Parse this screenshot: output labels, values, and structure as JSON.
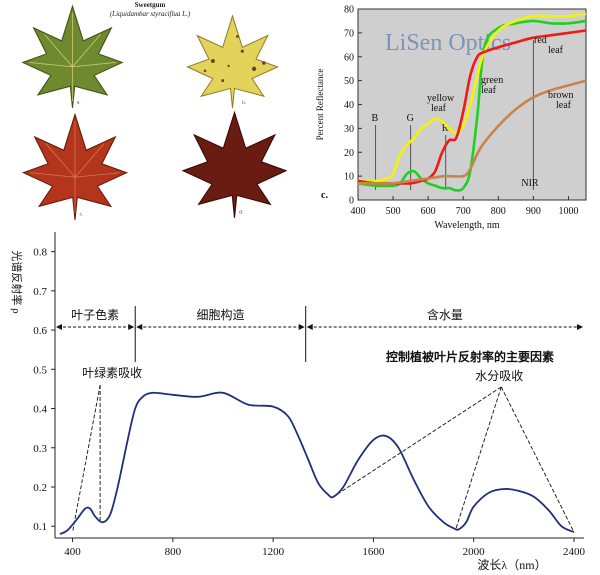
{
  "leaf_panel": {
    "title": "Sweetgum",
    "subtitle": "(Liquidambar styraciflua L.)",
    "labels": [
      "a.",
      "b.",
      "c.",
      "d."
    ],
    "colors": {
      "a": "#6f8a2e",
      "b": "#e3d35a",
      "c": "#b3361c",
      "d": "#6a1b12"
    }
  },
  "chart_data": [
    {
      "type": "line",
      "ylabel": "Percent Reflectance",
      "xlabel": "Wavelength, nm",
      "xlim": [
        400,
        1050
      ],
      "ylim": [
        0,
        80
      ],
      "xticks": [
        400,
        500,
        600,
        700,
        800,
        900,
        1000
      ],
      "yticks": [
        0,
        10,
        20,
        30,
        40,
        50,
        60,
        70,
        80
      ],
      "background": "#cfcfcf",
      "watermark": "LiSen Optics",
      "panel_label": "c.",
      "band_markers": [
        {
          "label": "B",
          "x": 450
        },
        {
          "label": "G",
          "x": 550
        },
        {
          "label": "R",
          "x": 650
        },
        {
          "label": "NIR",
          "x": 900
        }
      ],
      "series": [
        {
          "name": "green leaf",
          "color": "#1fd11f",
          "x": [
            400,
            450,
            500,
            520,
            540,
            560,
            580,
            600,
            620,
            640,
            660,
            680,
            700,
            720,
            740,
            760,
            800,
            850,
            900,
            950,
            1000,
            1050
          ],
          "y": [
            7,
            6,
            6,
            7,
            11,
            12,
            9,
            7,
            6,
            5,
            5,
            4,
            5,
            12,
            35,
            64,
            72,
            74,
            75,
            74,
            74,
            75
          ]
        },
        {
          "name": "yellow leaf",
          "color": "#f2f20a",
          "x": [
            400,
            450,
            480,
            500,
            520,
            540,
            560,
            580,
            600,
            620,
            640,
            660,
            680,
            700,
            720,
            740,
            760,
            800,
            850,
            900,
            950,
            1000,
            1050
          ],
          "y": [
            8,
            8,
            9,
            11,
            19,
            23,
            26,
            30,
            32,
            34,
            33,
            30,
            28,
            31,
            40,
            52,
            62,
            71,
            75,
            77,
            77,
            77,
            78
          ]
        },
        {
          "name": "red leaf",
          "color": "#ee1a1a",
          "x": [
            400,
            450,
            500,
            550,
            580,
            600,
            620,
            640,
            660,
            680,
            700,
            720,
            740,
            760,
            800,
            850,
            900,
            950,
            1000,
            1050
          ],
          "y": [
            8,
            7,
            7,
            7,
            8,
            9,
            12,
            20,
            25,
            26,
            37,
            52,
            60,
            62,
            64,
            66,
            68,
            69,
            70,
            71
          ]
        },
        {
          "name": "brown leaf",
          "color": "#c8844a",
          "x": [
            400,
            450,
            500,
            550,
            600,
            650,
            700,
            720,
            750,
            800,
            850,
            900,
            950,
            1000,
            1050
          ],
          "y": [
            7,
            7,
            7,
            8,
            9,
            10,
            10,
            13,
            22,
            31,
            38,
            43,
            46,
            48,
            50
          ]
        }
      ]
    },
    {
      "type": "line",
      "ylabel": "光谱反射率 ρ",
      "xlabel": "波长λ（nm）",
      "xlim": [
        330,
        2440
      ],
      "ylim": [
        0.07,
        0.85
      ],
      "xticks": [
        400,
        800,
        1200,
        1600,
        2000,
        2400
      ],
      "yticks": [
        0.1,
        0.2,
        0.3,
        0.4,
        0.5,
        0.6,
        0.7,
        0.8
      ],
      "title": "控制植被叶片反射率的主要因素",
      "regions": [
        {
          "label": "叶子色素",
          "x_start": 330,
          "x_end": 650
        },
        {
          "label": "细胞构造",
          "x_start": 650,
          "x_end": 1330
        },
        {
          "label": "含水量",
          "x_start": 1330,
          "x_end": 2440
        }
      ],
      "annotations": [
        {
          "label": "叶绿素吸收",
          "apex": [
            510,
            0.46
          ],
          "targets": [
            [
              400,
              0.085
            ],
            [
              510,
              0.115
            ]
          ]
        },
        {
          "label": "水分吸收",
          "apex": [
            2110,
            0.455
          ],
          "targets": [
            [
              1440,
              0.175
            ],
            [
              1930,
              0.095
            ],
            [
              2400,
              0.085
            ]
          ]
        }
      ],
      "series": [
        {
          "name": "",
          "color": "#1f2f7a",
          "x": [
            350,
            380,
            420,
            450,
            470,
            490,
            520,
            550,
            580,
            620,
            650,
            680,
            720,
            800,
            900,
            1000,
            1100,
            1200,
            1260,
            1300,
            1340,
            1380,
            1420,
            1440,
            1480,
            1540,
            1600,
            1650,
            1700,
            1760,
            1820,
            1880,
            1920,
            1940,
            1970,
            2000,
            2060,
            2120,
            2180,
            2240,
            2300,
            2350,
            2400
          ],
          "y": [
            0.08,
            0.09,
            0.12,
            0.145,
            0.145,
            0.125,
            0.11,
            0.13,
            0.2,
            0.32,
            0.4,
            0.43,
            0.44,
            0.435,
            0.43,
            0.44,
            0.41,
            0.405,
            0.38,
            0.33,
            0.27,
            0.21,
            0.18,
            0.175,
            0.2,
            0.27,
            0.32,
            0.33,
            0.3,
            0.22,
            0.15,
            0.11,
            0.095,
            0.092,
            0.11,
            0.15,
            0.185,
            0.195,
            0.19,
            0.175,
            0.14,
            0.1,
            0.085
          ]
        }
      ]
    }
  ]
}
